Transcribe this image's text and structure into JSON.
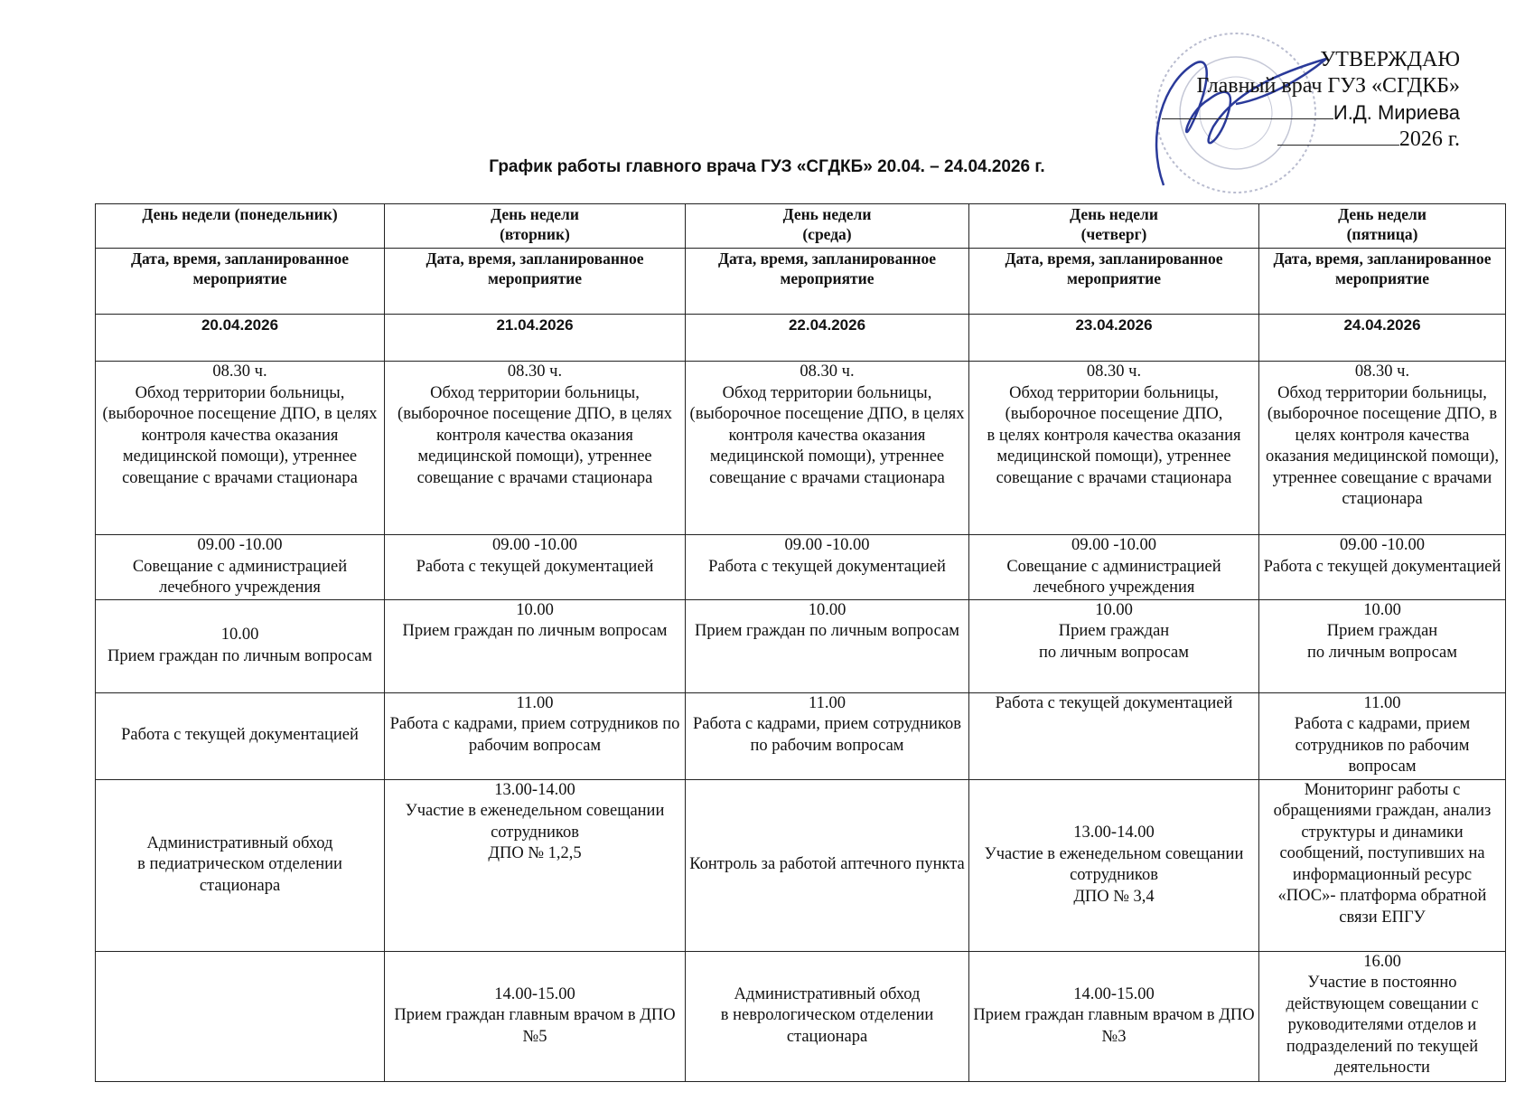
{
  "approval": {
    "approve": "УТВЕРЖДАЮ",
    "position": "Главный врач ГУЗ «СГДКБ»",
    "name": "И.Д. Мириева",
    "year": "2026 г."
  },
  "title": "График работы главного врача ГУЗ «СГДКБ» 20.04. – 24.04.2026 г.",
  "table": {
    "days": [
      "День недели (понедельник)",
      "День недели\n(вторник)",
      "День недели\n(среда)",
      "День недели\n(четверг)",
      "День недели\n(пятница)"
    ],
    "subheaders": [
      "Дата, время, запланированное мероприятие",
      "Дата, время, запланированное мероприятие",
      "Дата, время, запланированное мероприятие",
      "Дата, время, запланированное мероприятие",
      "Дата, время, запланированное мероприятие"
    ],
    "dates": [
      "20.04.2026",
      "21.04.2026",
      "22.04.2026",
      "23.04.2026",
      "24.04.2026"
    ],
    "rows": [
      [
        "08.30 ч.\nОбход территории больницы, (выборочное посещение ДПО, в целях контроля качества оказания медицинской помощи), утреннее совещание с врачами стационара",
        "08.30 ч.\nОбход территории больницы, (выборочное посещение ДПО, в целях контроля качества оказания медицинской помощи), утреннее совещание с врачами стационара",
        "08.30 ч.\nОбход территории больницы, (выборочное посещение ДПО, в целях контроля качества оказания медицинской помощи), утреннее совещание с врачами стационара",
        "08.30 ч.\nОбход территории больницы, (выборочное посещение ДПО,\nв целях контроля качества оказания медицинской помощи), утреннее совещание с врачами стационара",
        "08.30 ч.\nОбход территории больницы, (выборочное посещение ДПО, в целях контроля качества оказания медицинской помощи), утреннее совещание с врачами стационара"
      ],
      [
        "09.00 -10.00\nСовещание с администрацией лечебного учреждения",
        "09.00 -10.00\nРабота с текущей документацией",
        "09.00 -10.00\nРабота с текущей документацией",
        "09.00 -10.00\nСовещание с администрацией лечебного учреждения",
        "09.00 -10.00\nРабота с текущей документацией"
      ],
      [
        "10.00\nПрием граждан по личным вопросам",
        "10.00\nПрием граждан по личным вопросам",
        "10.00\nПрием граждан по личным вопросам",
        "10.00\nПрием граждан\nпо личным вопросам",
        "10.00\nПрием граждан\nпо личным вопросам"
      ],
      [
        "Работа с текущей документацией",
        "11.00\nРабота с кадрами, прием сотрудников по рабочим вопросам",
        "11.00\nРабота с кадрами, прием сотрудников по рабочим вопросам",
        "Работа с текущей документацией",
        "11.00\nРабота с кадрами, прием сотрудников по рабочим вопросам"
      ],
      [
        "Административный обход\nв педиатрическом отделении стационара",
        "13.00-14.00\nУчастие в еженедельном совещании сотрудников\nДПО № 1,2,5",
        "Контроль за работой аптечного пункта",
        "13.00-14.00\nУчастие в еженедельном совещании сотрудников\nДПО № 3,4",
        "Мониторинг работы с обращениями граждан, анализ структуры и динамики сообщений, поступивших на информационный ресурс «ПОС»- платформа обратной связи ЕПГУ"
      ],
      [
        "",
        "14.00-15.00\nПрием граждан главным врачом в ДПО №5",
        "Административный обход\nв неврологическом отделении стационара",
        "14.00-15.00\nПрием граждан главным врачом в ДПО №3",
        "16.00\nУчастие в постоянно действующем совещании с руководителями отделов и подразделений по текущей деятельности"
      ]
    ]
  }
}
